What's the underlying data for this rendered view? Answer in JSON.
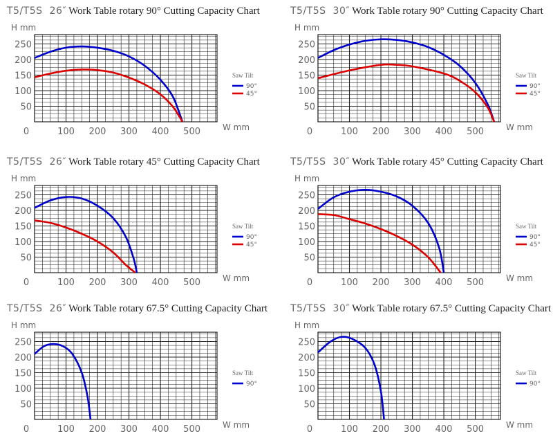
{
  "chart_data": [
    {
      "type": "line",
      "title_model": "T5/T5S",
      "title_size": "26″",
      "title_rest": "Work Table rotary 90°  Cutting Capacity Chart",
      "xlabel": "W mm",
      "ylabel": "H mm",
      "xlim": [
        0,
        580
      ],
      "ylim": [
        0,
        280
      ],
      "xticks": [
        0,
        100,
        200,
        300,
        400,
        500
      ],
      "yticks": [
        50,
        100,
        150,
        200,
        250
      ],
      "legend_title": "Saw Tilt",
      "legend": "right",
      "series": [
        {
          "name": "90°",
          "color": "#0000cc",
          "points": [
            [
              0,
              205
            ],
            [
              50,
              225
            ],
            [
              100,
              238
            ],
            [
              150,
              242
            ],
            [
              200,
              238
            ],
            [
              250,
              228
            ],
            [
              300,
              210
            ],
            [
              350,
              180
            ],
            [
              400,
              135
            ],
            [
              440,
              80
            ],
            [
              470,
              0
            ]
          ]
        },
        {
          "name": "45°",
          "color": "#dd0000",
          "points": [
            [
              0,
              143
            ],
            [
              50,
              155
            ],
            [
              100,
              164
            ],
            [
              150,
              168
            ],
            [
              200,
              166
            ],
            [
              250,
              158
            ],
            [
              300,
              142
            ],
            [
              350,
              120
            ],
            [
              400,
              88
            ],
            [
              440,
              48
            ],
            [
              470,
              0
            ]
          ]
        }
      ]
    },
    {
      "type": "line",
      "title_model": "T5/T5S",
      "title_size": "30″",
      "title_rest": "Work Table rotary 90°  Cutting Capacity Chart",
      "xlabel": "W mm",
      "ylabel": "H mm",
      "xlim": [
        0,
        580
      ],
      "ylim": [
        0,
        280
      ],
      "xticks": [
        0,
        100,
        200,
        300,
        400,
        500
      ],
      "yticks": [
        50,
        100,
        150,
        200,
        250
      ],
      "legend_title": "Saw Tilt",
      "legend": "right",
      "series": [
        {
          "name": "90°",
          "color": "#0000cc",
          "points": [
            [
              0,
              205
            ],
            [
              50,
              230
            ],
            [
              100,
              248
            ],
            [
              150,
              260
            ],
            [
              200,
              265
            ],
            [
              250,
              263
            ],
            [
              300,
              255
            ],
            [
              350,
              240
            ],
            [
              400,
              215
            ],
            [
              450,
              180
            ],
            [
              500,
              125
            ],
            [
              540,
              55
            ],
            [
              560,
              0
            ]
          ]
        },
        {
          "name": "45°",
          "color": "#dd0000",
          "points": [
            [
              0,
              140
            ],
            [
              100,
              165
            ],
            [
              200,
              183
            ],
            [
              250,
              183
            ],
            [
              300,
              178
            ],
            [
              400,
              155
            ],
            [
              450,
              132
            ],
            [
              500,
              95
            ],
            [
              540,
              45
            ],
            [
              560,
              0
            ]
          ]
        }
      ]
    },
    {
      "type": "line",
      "title_model": "T5/T5S",
      "title_size": "26″",
      "title_rest": "Work Table rotary 45°  Cutting Capacity Chart",
      "xlabel": "W mm",
      "ylabel": "H mm",
      "xlim": [
        0,
        580
      ],
      "ylim": [
        0,
        280
      ],
      "xticks": [
        0,
        100,
        200,
        300,
        400,
        500
      ],
      "yticks": [
        50,
        100,
        150,
        200,
        250
      ],
      "legend_title": "Saw Tilt",
      "legend": "right",
      "series": [
        {
          "name": "90°",
          "color": "#0000cc",
          "points": [
            [
              0,
              208
            ],
            [
              50,
              232
            ],
            [
              100,
              243
            ],
            [
              150,
              238
            ],
            [
              200,
              215
            ],
            [
              250,
              175
            ],
            [
              290,
              115
            ],
            [
              315,
              45
            ],
            [
              325,
              0
            ]
          ]
        },
        {
          "name": "45°",
          "color": "#dd0000",
          "points": [
            [
              0,
              168
            ],
            [
              50,
              160
            ],
            [
              100,
              145
            ],
            [
              150,
              125
            ],
            [
              200,
              100
            ],
            [
              250,
              65
            ],
            [
              290,
              25
            ],
            [
              320,
              0
            ]
          ]
        }
      ]
    },
    {
      "type": "line",
      "title_model": "T5/T5S",
      "title_size": "30″",
      "title_rest": "Work Table rotary 45°  Cutting Capacity Chart",
      "xlabel": "W mm",
      "ylabel": "H mm",
      "xlim": [
        0,
        580
      ],
      "ylim": [
        0,
        280
      ],
      "xticks": [
        0,
        100,
        200,
        300,
        400,
        500
      ],
      "yticks": [
        50,
        100,
        150,
        200,
        250
      ],
      "legend_title": "Saw Tilt",
      "legend": "right",
      "series": [
        {
          "name": "90°",
          "color": "#0000cc",
          "points": [
            [
              0,
              205
            ],
            [
              50,
              242
            ],
            [
              100,
              260
            ],
            [
              150,
              266
            ],
            [
              200,
              260
            ],
            [
              250,
              245
            ],
            [
              300,
              215
            ],
            [
              350,
              160
            ],
            [
              385,
              80
            ],
            [
              400,
              0
            ]
          ]
        },
        {
          "name": "45°",
          "color": "#dd0000",
          "points": [
            [
              0,
              188
            ],
            [
              50,
              185
            ],
            [
              100,
              172
            ],
            [
              150,
              158
            ],
            [
              200,
              140
            ],
            [
              250,
              118
            ],
            [
              300,
              90
            ],
            [
              350,
              50
            ],
            [
              390,
              0
            ]
          ]
        }
      ]
    },
    {
      "type": "line",
      "title_model": "T5/T5S",
      "title_size": "26″",
      "title_rest": "Work Table rotary 67.5°  Cutting Capacity Chart",
      "xlabel": "W mm",
      "ylabel": "H mm",
      "xlim": [
        0,
        580
      ],
      "ylim": [
        0,
        280
      ],
      "xticks": [
        0,
        100,
        200,
        300,
        400,
        500
      ],
      "yticks": [
        50,
        100,
        150,
        200,
        250
      ],
      "legend_title": "Saw Tilt",
      "legend": "right",
      "series": [
        {
          "name": "90°",
          "color": "#0000cc",
          "points": [
            [
              0,
              210
            ],
            [
              30,
              235
            ],
            [
              60,
              242
            ],
            [
              90,
              235
            ],
            [
              120,
              210
            ],
            [
              150,
              150
            ],
            [
              168,
              75
            ],
            [
              178,
              0
            ]
          ]
        }
      ]
    },
    {
      "type": "line",
      "title_model": "T5/T5S",
      "title_size": "30″",
      "title_rest": "Work Table rotary 67.5°  Cutting Capacity Chart",
      "xlabel": "W mm",
      "ylabel": "H mm",
      "xlim": [
        0,
        580
      ],
      "ylim": [
        0,
        280
      ],
      "xticks": [
        0,
        100,
        200,
        300,
        400,
        500
      ],
      "yticks": [
        50,
        100,
        150,
        200,
        250
      ],
      "legend_title": "Saw Tilt",
      "legend": "right",
      "series": [
        {
          "name": "90°",
          "color": "#0000cc",
          "points": [
            [
              0,
              215
            ],
            [
              40,
              250
            ],
            [
              75,
              265
            ],
            [
              110,
              258
            ],
            [
              150,
              230
            ],
            [
              180,
              175
            ],
            [
              200,
              90
            ],
            [
              210,
              0
            ]
          ]
        }
      ]
    }
  ]
}
